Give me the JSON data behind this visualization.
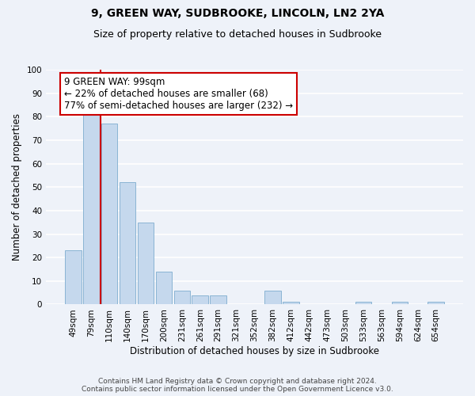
{
  "title": "9, GREEN WAY, SUDBROOKE, LINCOLN, LN2 2YA",
  "subtitle": "Size of property relative to detached houses in Sudbrooke",
  "xlabel": "Distribution of detached houses by size in Sudbrooke",
  "ylabel": "Number of detached properties",
  "bar_labels": [
    "49sqm",
    "79sqm",
    "110sqm",
    "140sqm",
    "170sqm",
    "200sqm",
    "231sqm",
    "261sqm",
    "291sqm",
    "321sqm",
    "352sqm",
    "382sqm",
    "412sqm",
    "442sqm",
    "473sqm",
    "503sqm",
    "533sqm",
    "563sqm",
    "594sqm",
    "624sqm",
    "654sqm"
  ],
  "bar_values": [
    23,
    82,
    77,
    52,
    35,
    14,
    6,
    4,
    4,
    0,
    0,
    6,
    1,
    0,
    0,
    0,
    1,
    0,
    1,
    0,
    1
  ],
  "bar_color": "#c5d8ed",
  "bar_edge_color": "#8ab4d4",
  "highlight_line_color": "#cc0000",
  "annotation_box_text": "9 GREEN WAY: 99sqm\n← 22% of detached houses are smaller (68)\n77% of semi-detached houses are larger (232) →",
  "annotation_box_color": "#ffffff",
  "annotation_box_edge_color": "#cc0000",
  "ylim": [
    0,
    100
  ],
  "yticks": [
    0,
    10,
    20,
    30,
    40,
    50,
    60,
    70,
    80,
    90,
    100
  ],
  "background_color": "#eef2f9",
  "grid_color": "#ffffff",
  "footer_line1": "Contains HM Land Registry data © Crown copyright and database right 2024.",
  "footer_line2": "Contains public sector information licensed under the Open Government Licence v3.0.",
  "title_fontsize": 10,
  "subtitle_fontsize": 9,
  "axis_label_fontsize": 8.5,
  "tick_fontsize": 7.5,
  "annotation_fontsize": 8.5,
  "footer_fontsize": 6.5
}
